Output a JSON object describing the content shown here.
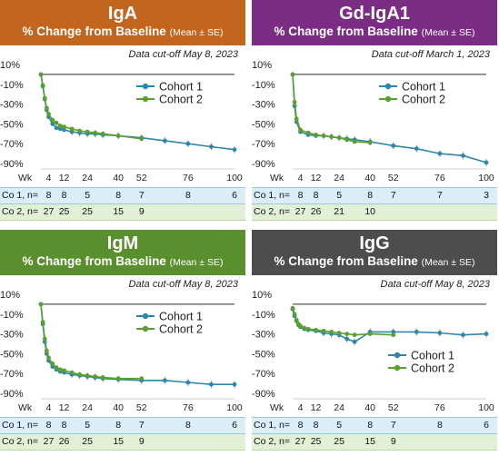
{
  "panels": [
    {
      "id": "iga",
      "header_color": "#c1651f",
      "title": "IgA",
      "subtitle": "% Change from Baseline",
      "subtitle_small": "(Mean ± SE)",
      "cutoff": "Data cut-off May 8, 2023",
      "legend": [
        "Cohort 1",
        "Cohort 2"
      ],
      "co1_label": "Co 1, n=",
      "co1_counts": [
        "8",
        "8",
        "5",
        "8",
        "7",
        "8",
        "6"
      ],
      "co1_weeks": [
        4,
        12,
        24,
        40,
        52,
        76,
        100
      ],
      "co2_label": "Co 2, n=",
      "co2_counts": [
        "27",
        "25",
        "25",
        "15",
        "9"
      ],
      "co2_weeks": [
        4,
        12,
        24,
        40,
        52
      ]
    },
    {
      "id": "gd-iga1",
      "header_color": "#7b2d83",
      "title": "Gd-IgA1",
      "subtitle": "% Change from Baseline",
      "subtitle_small": "(Mean ± SE)",
      "cutoff": "Data cut-off March 1, 2023",
      "legend": [
        "Cohort 1",
        "Cohort 2"
      ],
      "co1_label": "Co 1, n=",
      "co1_counts": [
        "8",
        "8",
        "5",
        "8",
        "7",
        "7",
        "3"
      ],
      "co1_weeks": [
        4,
        12,
        24,
        40,
        52,
        76,
        100
      ],
      "co2_label": "Co 2, n=",
      "co2_counts": [
        "27",
        "26",
        "21",
        "10"
      ],
      "co2_weeks": [
        4,
        12,
        24,
        40
      ]
    },
    {
      "id": "igm",
      "header_color": "#5a8f2d",
      "title": "IgM",
      "subtitle": "% Change from Baseline",
      "subtitle_small": "(Mean ± SE)",
      "cutoff": "Data cut-off May 8, 2023",
      "legend": [
        "Cohort 1",
        "Cohort 2"
      ],
      "co1_label": "Co 1, n=",
      "co1_counts": [
        "8",
        "8",
        "5",
        "8",
        "7",
        "8",
        "6"
      ],
      "co1_weeks": [
        4,
        12,
        24,
        40,
        52,
        76,
        100
      ],
      "co2_label": "Co 2, n=",
      "co2_counts": [
        "27",
        "26",
        "25",
        "15",
        "9"
      ],
      "co2_weeks": [
        4,
        12,
        24,
        40,
        52
      ]
    },
    {
      "id": "igg",
      "header_color": "#4d4d4d",
      "title": "IgG",
      "subtitle": "% Change from Baseline",
      "subtitle_small": "(Mean ± SE)",
      "cutoff": "Data cut-off May 8, 2023",
      "legend": [
        "Cohort 1",
        "Cohort 2"
      ],
      "co1_label": "Co 1, n=",
      "co1_counts": [
        "8",
        "8",
        "5",
        "8",
        "7",
        "8",
        "6"
      ],
      "co1_weeks": [
        4,
        12,
        24,
        40,
        52,
        76,
        100
      ],
      "co2_label": "Co 2, n=",
      "co2_counts": [
        "27",
        "25",
        "25",
        "15",
        "9"
      ],
      "co2_weeks": [
        4,
        12,
        24,
        40,
        52
      ]
    }
  ],
  "colors": {
    "cohort1": "#2e86ab",
    "cohort2": "#5aa02c",
    "baseline": "#555555"
  },
  "chart_data": [
    {
      "type": "line",
      "title": "IgA",
      "xlabel": "Wk",
      "ylabel": "",
      "ylim": [
        -90,
        10
      ],
      "xlim": [
        0,
        100
      ],
      "yticks": [
        "10%",
        "-10%",
        "-30%",
        "-50%",
        "-70%",
        "-90%"
      ],
      "xticks": [
        4,
        12,
        24,
        40,
        52,
        76,
        100
      ],
      "xtick_prefix": "Wk",
      "series": [
        {
          "name": "Cohort 1",
          "x": [
            0,
            1,
            2,
            3,
            4,
            6,
            8,
            10,
            12,
            16,
            20,
            24,
            28,
            32,
            40,
            52,
            64,
            76,
            88,
            100
          ],
          "y": [
            0,
            -12,
            -25,
            -36,
            -43,
            -50,
            -54,
            -55,
            -56,
            -58,
            -59,
            -60,
            -60,
            -61,
            -62,
            -64,
            -67,
            -70,
            -73,
            -76
          ]
        },
        {
          "name": "Cohort 2",
          "x": [
            0,
            1,
            2,
            3,
            4,
            6,
            8,
            10,
            12,
            16,
            20,
            24,
            28,
            32,
            40,
            52
          ],
          "y": [
            0,
            -11,
            -24,
            -34,
            -40,
            -46,
            -49,
            -52,
            -53,
            -55,
            -57,
            -58,
            -59,
            -60,
            -62,
            -65
          ]
        }
      ]
    },
    {
      "type": "line",
      "title": "Gd-IgA1",
      "xlabel": "Wk",
      "ylabel": "",
      "ylim": [
        -90,
        10
      ],
      "xlim": [
        0,
        100
      ],
      "yticks": [
        "10%",
        "-10%",
        "-30%",
        "-50%",
        "-70%",
        "-90%"
      ],
      "xticks": [
        4,
        12,
        24,
        40,
        52,
        76,
        100
      ],
      "xtick_prefix": "Wk",
      "series": [
        {
          "name": "Cohort 1",
          "x": [
            0,
            1,
            2,
            4,
            8,
            12,
            16,
            20,
            24,
            28,
            32,
            40,
            52,
            64,
            76,
            88,
            100
          ],
          "y": [
            0,
            -32,
            -48,
            -58,
            -61,
            -62,
            -62,
            -63,
            -64,
            -65,
            -66,
            -68,
            -72,
            -75,
            -80,
            -82,
            -89
          ]
        },
        {
          "name": "Cohort 2",
          "x": [
            0,
            1,
            2,
            4,
            8,
            12,
            16,
            20,
            24,
            28,
            32,
            40
          ],
          "y": [
            0,
            -28,
            -45,
            -56,
            -59,
            -61,
            -62,
            -63,
            -64,
            -66,
            -68,
            -69
          ]
        }
      ]
    },
    {
      "type": "line",
      "title": "IgM",
      "xlabel": "Wk",
      "ylabel": "",
      "ylim": [
        -90,
        10
      ],
      "xlim": [
        0,
        100
      ],
      "yticks": [
        "10%",
        "-10%",
        "-30%",
        "-50%",
        "-70%",
        "-90%"
      ],
      "xticks": [
        4,
        12,
        24,
        40,
        52,
        76,
        100
      ],
      "xtick_prefix": "Wk",
      "series": [
        {
          "name": "Cohort 1",
          "x": [
            0,
            1,
            2,
            3,
            4,
            6,
            8,
            10,
            12,
            16,
            20,
            24,
            28,
            32,
            40,
            52,
            64,
            76,
            88,
            100
          ],
          "y": [
            0,
            -20,
            -38,
            -50,
            -57,
            -63,
            -66,
            -68,
            -69,
            -71,
            -72,
            -73,
            -74,
            -75,
            -76,
            -77,
            -77,
            -79,
            -81,
            -81
          ]
        },
        {
          "name": "Cohort 2",
          "x": [
            0,
            1,
            2,
            3,
            4,
            6,
            8,
            10,
            12,
            16,
            20,
            24,
            28,
            32,
            40,
            52
          ],
          "y": [
            0,
            -18,
            -35,
            -47,
            -54,
            -60,
            -64,
            -66,
            -67,
            -69,
            -71,
            -72,
            -73,
            -74,
            -75,
            -75
          ]
        }
      ]
    },
    {
      "type": "line",
      "title": "IgG",
      "xlabel": "Wk",
      "ylabel": "",
      "ylim": [
        -90,
        10
      ],
      "xlim": [
        0,
        100
      ],
      "yticks": [
        "10%",
        "-10%",
        "-30%",
        "-50%",
        "-70%",
        "-90%"
      ],
      "xticks": [
        4,
        12,
        24,
        40,
        52,
        76,
        100
      ],
      "xtick_prefix": "Wk",
      "series": [
        {
          "name": "Cohort 1",
          "x": [
            0,
            1,
            2,
            3,
            4,
            6,
            8,
            12,
            16,
            20,
            24,
            28,
            32,
            40,
            52,
            64,
            76,
            88,
            100
          ],
          "y": [
            -5,
            -12,
            -17,
            -21,
            -23,
            -25,
            -26,
            -27,
            -29,
            -30,
            -31,
            -35,
            -38,
            -28,
            -28,
            -28,
            -29,
            -31,
            -30
          ]
        },
        {
          "name": "Cohort 2",
          "x": [
            0,
            1,
            2,
            3,
            4,
            6,
            8,
            12,
            16,
            20,
            24,
            28,
            32,
            40,
            52
          ],
          "y": [
            -4,
            -10,
            -16,
            -20,
            -22,
            -24,
            -25,
            -26,
            -27,
            -28,
            -29,
            -30,
            -31,
            -30,
            -31
          ]
        }
      ]
    }
  ]
}
